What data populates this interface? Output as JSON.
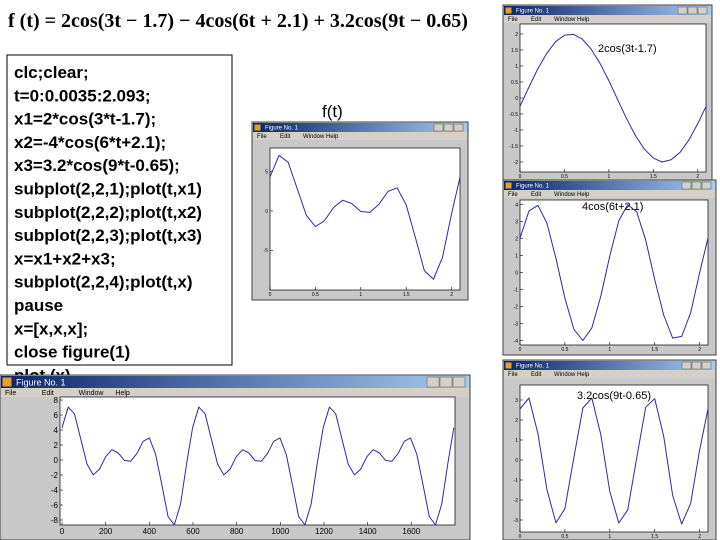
{
  "title": "f (t) = 2cos(3t − 1.7) − 4cos(6t + 2.1) + 3.2cos(9t − 0.65)",
  "code": [
    "clc;clear;",
    "t=0:0.0035:2.093;",
    "x1=2*cos(3*t-1.7);",
    "x2=-4*cos(6*t+2.1);",
    "x3=3.2*cos(9*t-0.65);",
    "subplot(2,2,1);plot(t,x1)",
    "subplot(2,2,2);plot(t,x2)",
    "subplot(2,2,3);plot(t,x3)",
    "x=x1+x2+x3;",
    "subplot(2,2,4);plot(t,x)",
    "pause",
    "x=[x,x,x];",
    "close figure(1)",
    "plot (x)"
  ],
  "labels": [
    "f(t)",
    "2cos(3t-1.7)",
    "4cos(6t+2.1)",
    "3.2cos(9t-0.65)"
  ],
  "windows": [
    {
      "title": "Figure No. 1",
      "menu": [
        "File",
        "Edit",
        "Window",
        "Help"
      ],
      "xticks": [
        0,
        0.5,
        1,
        1.5,
        2
      ],
      "yticks": [
        5,
        0,
        -5
      ]
    },
    {
      "title": "Figure No. 1",
      "menu": [
        "File",
        "Edit",
        "Window",
        "Help"
      ],
      "xticks": [
        0,
        0.5,
        1,
        1.5,
        2
      ],
      "yticks": [
        2,
        1.5,
        1,
        0.5,
        0,
        -0.5,
        -1,
        -1.5,
        -2
      ]
    },
    {
      "title": "Figure No. 1",
      "menu": [
        "File",
        "Edit",
        "Window",
        "Help"
      ],
      "xticks": [
        0,
        0.5,
        1,
        1.5,
        2
      ],
      "yticks": [
        4,
        3,
        2,
        1,
        0,
        -1,
        -2,
        -3,
        -4
      ]
    },
    {
      "title": "Figure No. 1",
      "menu": [
        "File",
        "Edit",
        "Window",
        "Help"
      ],
      "xticks": [
        0,
        0.5,
        1,
        1.5,
        2
      ],
      "yticks": [
        3,
        2,
        1,
        0,
        -1,
        -2,
        -3
      ]
    },
    {
      "title": "Figure No. 1",
      "menu": [
        "File",
        "Edit",
        "Window",
        "Help"
      ],
      "xticks": [
        0,
        200,
        400,
        600,
        800,
        1000,
        1200,
        1400,
        1600
      ],
      "yticks": [
        8,
        6,
        4,
        2,
        0,
        -2,
        -4,
        -6,
        -8
      ]
    }
  ]
}
